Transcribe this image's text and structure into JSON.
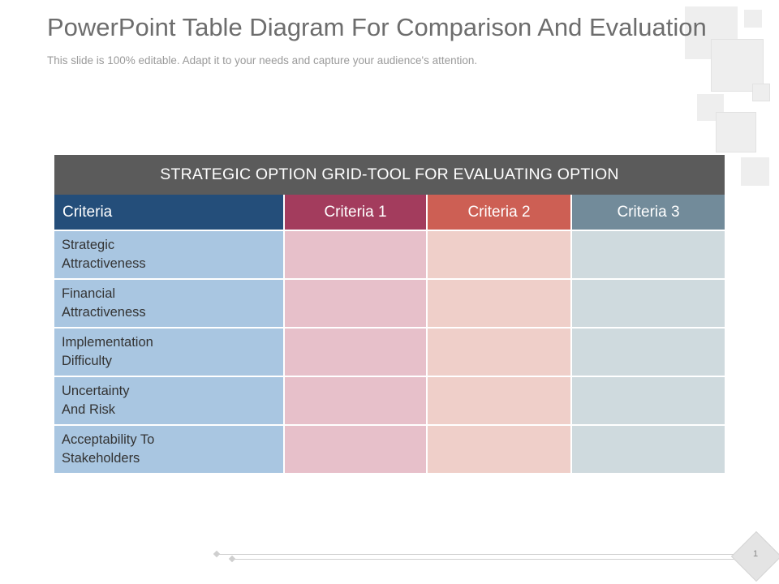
{
  "slide": {
    "title": "PowerPoint Table Diagram For Comparison And Evaluation",
    "subtitle": "This slide is 100% editable. Adapt it to your needs and capture your audience's attention.",
    "page_number": "1"
  },
  "table": {
    "title": "STRATEGIC OPTION GRID-TOOL FOR EVALUATING OPTION",
    "headers": [
      "Criteria",
      "Criteria 1",
      "Criteria 2",
      "Criteria 3"
    ],
    "rows": [
      {
        "line1": "Strategic",
        "line2": "Attractiveness"
      },
      {
        "line1": "Financial",
        "line2": "Attractiveness"
      },
      {
        "line1": "Implementation",
        "line2": "Difficulty"
      },
      {
        "line1": "Uncertainty",
        "line2": "And Risk"
      },
      {
        "line1": "Acceptability To",
        "line2": "Stakeholders"
      }
    ]
  },
  "colors": {
    "title_bar": "#5b5b5b",
    "criteria_header": "#244e7a",
    "criteria_1_header": "#a33c5d",
    "criteria_2_header": "#cd5f54",
    "criteria_3_header": "#728b9a",
    "criteria_cells": "#a9c6e1",
    "criteria_1_cells": "#e7c0ca",
    "criteria_2_cells": "#efcfc9",
    "criteria_3_cells": "#cfdade"
  }
}
